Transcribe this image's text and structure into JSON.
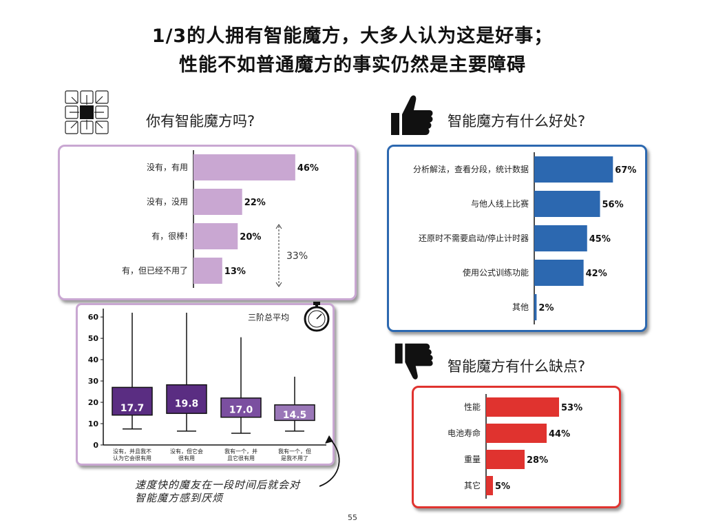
{
  "title": {
    "line1": "1/3的人拥有智能魔方，大多人认为这是好事；",
    "line2": "性能不如普通魔方的事实仍然是主要障碍"
  },
  "sections": {
    "own": "你有智能魔方吗?",
    "benefits": "智能魔方有什么好处?",
    "drawbacks": "智能魔方有什么缺点?"
  },
  "bracket_label": "33%",
  "boxplot_caption": "三阶总平均",
  "note": {
    "line1": "速度快的魔友在一段时间后就会对",
    "line2": "智能魔方感到厌烦"
  },
  "page_number": "55",
  "colors": {
    "purple_bar": "#c9a7d2",
    "blue_bar": "#2c68b0",
    "red_bar": "#e0332f",
    "box_dark": "#5a2d82",
    "box_mid": "#7b4fa0",
    "box_light": "#9a77b8"
  },
  "icons": [
    "circuit-cube-icon",
    "thumbs-up-icon",
    "thumbs-down-icon",
    "stopwatch-icon"
  ],
  "chart_data": [
    {
      "id": "own",
      "type": "bar",
      "orientation": "horizontal",
      "categories": [
        "没有，有用",
        "没有，没用",
        "有，很棒!",
        "有，但已经不用了"
      ],
      "values": [
        46,
        22,
        20,
        13
      ],
      "value_labels": [
        "46%",
        "22%",
        "20%",
        "13%"
      ],
      "xlim": [
        0,
        70
      ]
    },
    {
      "id": "benefits",
      "type": "bar",
      "orientation": "horizontal",
      "categories": [
        "分析解法，查看分段，统计数据",
        "与他人线上比赛",
        "还原时不需要启动/停止计时器",
        "使用公式训练功能",
        "其他"
      ],
      "values": [
        67,
        56,
        45,
        42,
        2
      ],
      "value_labels": [
        "67%",
        "56%",
        "45%",
        "42%",
        "2%"
      ],
      "xlim": [
        0,
        85
      ]
    },
    {
      "id": "drawbacks",
      "type": "bar",
      "orientation": "horizontal",
      "categories": [
        "性能",
        "电池寿命",
        "重量",
        "其它"
      ],
      "values": [
        53,
        44,
        28,
        5
      ],
      "value_labels": [
        "53%",
        "44%",
        "28%",
        "5%"
      ],
      "xlim": [
        0,
        80
      ]
    },
    {
      "id": "boxplot",
      "type": "box",
      "categories": [
        "没有，并且我不认为它会很有用",
        "没有，但它会很有用",
        "我有一个，并且它很有用",
        "我有一个，但是我不用了"
      ],
      "medians": [
        17.7,
        19.8,
        17.0,
        14.5
      ],
      "median_labels": [
        "17.7",
        "19.8",
        "17.0",
        "14.5"
      ],
      "q1": [
        14,
        14.8,
        13,
        11.5
      ],
      "q3": [
        27,
        28.2,
        22,
        18.8
      ],
      "whisker_low": [
        7.5,
        6.5,
        5.5,
        6.5
      ],
      "whisker_high": [
        62,
        62,
        50.5,
        32
      ],
      "yticks": [
        0,
        10,
        20,
        30,
        40,
        50,
        60
      ],
      "ylim": [
        0,
        62
      ]
    }
  ]
}
